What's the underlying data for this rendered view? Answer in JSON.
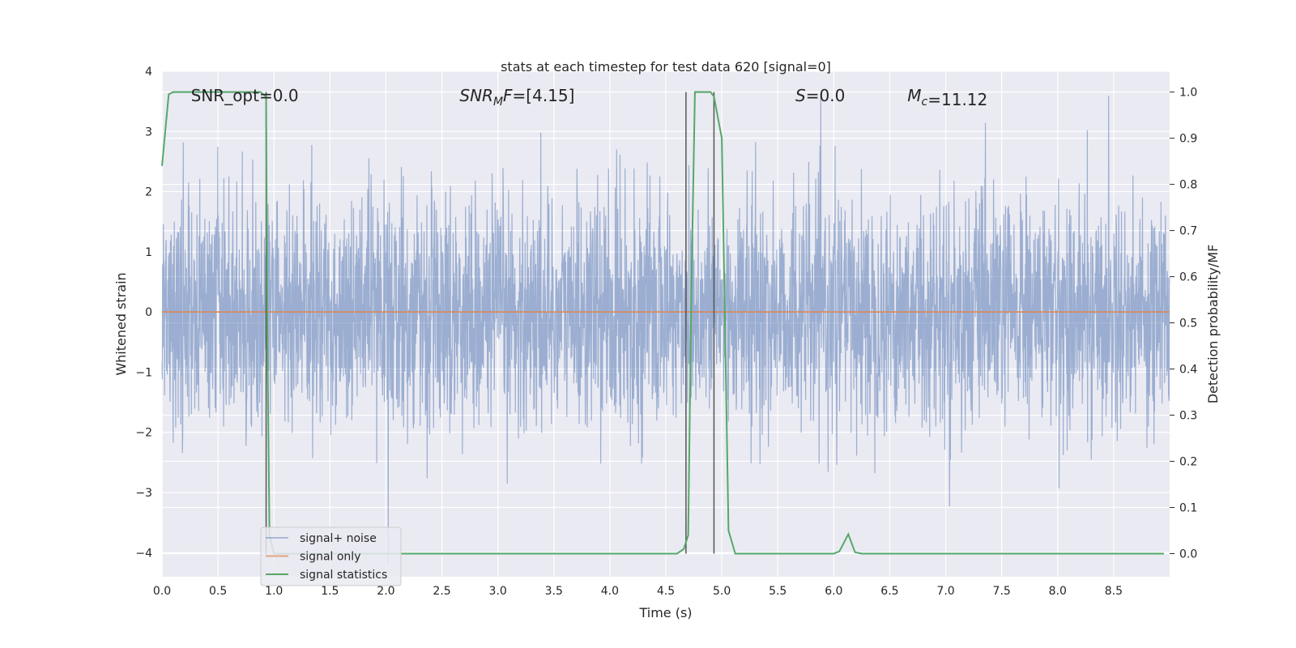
{
  "chart_data": {
    "type": "line",
    "title": "stats at each timestep for test data 620 [signal=0]",
    "xlabel": "Time (s)",
    "ylabel": "Whitened strain",
    "ylabel_right": "Detection probability/MF",
    "xlim": [
      0.0,
      9.0
    ],
    "ylim": [
      -4.4,
      4.0
    ],
    "ylim_right": [
      -0.05,
      1.045
    ],
    "x_ticks": [
      0.0,
      0.5,
      1.0,
      1.5,
      2.0,
      2.5,
      3.0,
      3.5,
      4.0,
      4.5,
      5.0,
      5.5,
      6.0,
      6.5,
      7.0,
      7.5,
      8.0,
      8.5
    ],
    "x_tick_labels": [
      "0.0",
      "0.5",
      "1.0",
      "1.5",
      "2.0",
      "2.5",
      "3.0",
      "3.5",
      "4.0",
      "4.5",
      "5.0",
      "5.5",
      "6.0",
      "6.5",
      "7.0",
      "7.5",
      "8.0",
      "8.5"
    ],
    "y_ticks": [
      4,
      3,
      2,
      1,
      0,
      -1,
      -2,
      -3,
      -4
    ],
    "y_tick_labels": [
      "4",
      "3",
      "2",
      "1",
      "0",
      "−1",
      "−2",
      "−3",
      "−4"
    ],
    "y_right_ticks": [
      1.0,
      0.9,
      0.8,
      0.7,
      0.6,
      0.5,
      0.4,
      0.3,
      0.2,
      0.1,
      0.0
    ],
    "y_right_tick_labels": [
      "1.0",
      "0.9",
      "0.8",
      "0.7",
      "0.6",
      "0.5",
      "0.4",
      "0.3",
      "0.2",
      "0.1",
      "0.0"
    ],
    "grid": true,
    "legend_position": "lower-left",
    "annotations": [
      {
        "id": "snr_opt",
        "prefix": "SNR_opt=",
        "value": "0.0",
        "x": 0.2
      },
      {
        "id": "snr_mf",
        "prefix_main": "SNR",
        "prefix_sub": "M",
        "prefix_tail": "F=",
        "value": "[4.15]",
        "x": 2.6
      },
      {
        "id": "s",
        "prefix": "S",
        "value": "=0.0",
        "x": 5.6
      },
      {
        "id": "mc",
        "prefix_main": "M",
        "prefix_sub": "c",
        "value": "=11.12",
        "x": 6.6
      }
    ],
    "series": [
      {
        "name": "signal+ noise",
        "color": "#4c72b0",
        "kind": "noise",
        "sigma": 0.95,
        "n_points": 3600
      },
      {
        "name": "signal only",
        "color": "#dd8452",
        "kind": "line",
        "x": [
          0.0,
          9.0
        ],
        "y": [
          0.0,
          0.0
        ]
      },
      {
        "name": "signal statistics",
        "color": "#55a868",
        "kind": "line",
        "axis": "right",
        "x": [
          0.0,
          0.06,
          0.1,
          0.2,
          0.5,
          0.8,
          0.88,
          0.93,
          0.94,
          0.96,
          1.0,
          2.0,
          3.0,
          4.0,
          4.6,
          4.66,
          4.7,
          4.73,
          4.76,
          4.8,
          4.9,
          4.93,
          5.0,
          5.06,
          5.12,
          5.2,
          5.5,
          6.0,
          6.05,
          6.13,
          6.19,
          6.25,
          7.0,
          8.0,
          8.95
        ],
        "y": [
          0.84,
          0.995,
          1.0,
          1.0,
          1.0,
          1.0,
          1.0,
          0.99,
          0.5,
          0.04,
          0.0,
          0.0,
          0.0,
          0.0,
          0.0,
          0.01,
          0.04,
          0.6,
          1.0,
          1.0,
          1.0,
          0.99,
          0.9,
          0.05,
          0.0,
          0.0,
          0.0,
          0.0,
          0.005,
          0.042,
          0.003,
          0.0,
          0.0,
          0.0,
          0.0
        ]
      }
    ],
    "vlines": [
      0.93,
      4.68,
      4.93
    ]
  }
}
